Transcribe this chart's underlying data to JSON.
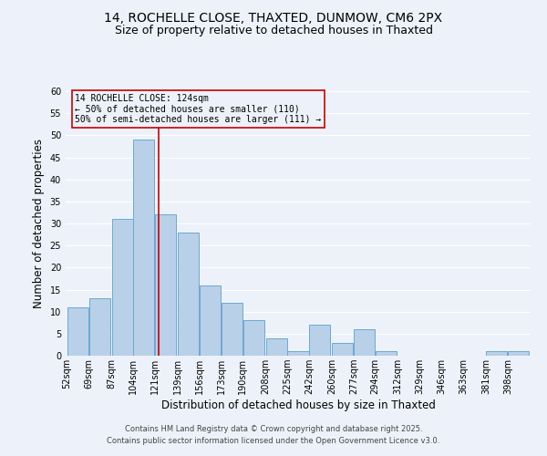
{
  "title1": "14, ROCHELLE CLOSE, THAXTED, DUNMOW, CM6 2PX",
  "title2": "Size of property relative to detached houses in Thaxted",
  "xlabel": "Distribution of detached houses by size in Thaxted",
  "ylabel": "Number of detached properties",
  "bin_labels": [
    "52sqm",
    "69sqm",
    "87sqm",
    "104sqm",
    "121sqm",
    "139sqm",
    "156sqm",
    "173sqm",
    "190sqm",
    "208sqm",
    "225sqm",
    "242sqm",
    "260sqm",
    "277sqm",
    "294sqm",
    "312sqm",
    "329sqm",
    "346sqm",
    "363sqm",
    "381sqm",
    "398sqm"
  ],
  "bin_left": [
    52,
    69,
    87,
    104,
    121,
    139,
    156,
    173,
    190,
    208,
    225,
    242,
    260,
    277,
    294,
    312,
    329,
    346,
    363,
    381,
    398
  ],
  "bin_width": 17,
  "counts": [
    11,
    13,
    31,
    49,
    32,
    28,
    16,
    12,
    8,
    4,
    1,
    7,
    3,
    6,
    1,
    0,
    0,
    0,
    0,
    1,
    1
  ],
  "bar_color": "#b8d0e8",
  "bar_edge_color": "#6da8d4",
  "vline_x": 124,
  "vline_color": "#cc0000",
  "annotation_title": "14 ROCHELLE CLOSE: 124sqm",
  "annotation_line1": "← 50% of detached houses are smaller (110)",
  "annotation_line2": "50% of semi-detached houses are larger (111) →",
  "annotation_box_edge": "#cc0000",
  "ylim": [
    0,
    60
  ],
  "yticks": [
    0,
    5,
    10,
    15,
    20,
    25,
    30,
    35,
    40,
    45,
    50,
    55,
    60
  ],
  "footer1": "Contains HM Land Registry data © Crown copyright and database right 2025.",
  "footer2": "Contains public sector information licensed under the Open Government Licence v3.0.",
  "bg_color": "#edf2fa",
  "grid_color": "#ffffff",
  "title_fontsize": 10,
  "subtitle_fontsize": 9,
  "axis_label_fontsize": 8.5,
  "tick_fontsize": 7,
  "annotation_fontsize": 7,
  "footer_fontsize": 6
}
